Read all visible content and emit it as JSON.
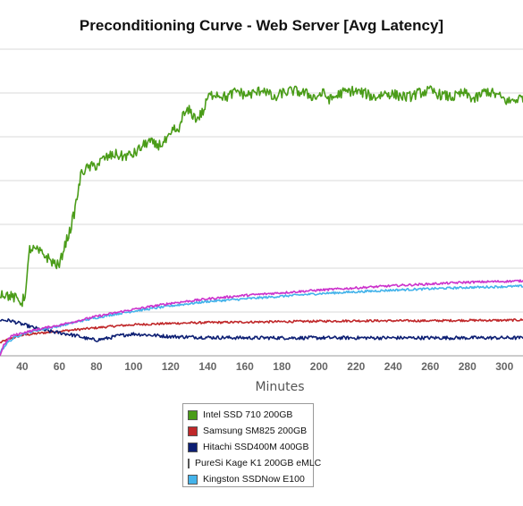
{
  "chart_data": {
    "type": "line",
    "title": "Preconditioning Curve - Web Server [Avg Latency]",
    "xlabel": "Minutes",
    "ylabel": "",
    "xlim": [
      28,
      310
    ],
    "ylim": [
      0,
      7
    ],
    "x_ticks": [
      40,
      60,
      80,
      100,
      120,
      140,
      160,
      180,
      200,
      220,
      240,
      260,
      280,
      300
    ],
    "grid": "horizontal",
    "legend_position": "bottom-center",
    "series": [
      {
        "name": "Intel SSD 710 200GB",
        "color": "#4a9c18",
        "noise": 0.12,
        "points": [
          [
            28,
            1.45
          ],
          [
            36,
            1.32
          ],
          [
            40,
            1.22
          ],
          [
            42,
            1.5
          ],
          [
            44,
            2.45
          ],
          [
            48,
            2.4
          ],
          [
            52,
            2.3
          ],
          [
            56,
            2.15
          ],
          [
            60,
            2.05
          ],
          [
            62,
            2.4
          ],
          [
            66,
            2.9
          ],
          [
            68,
            3.25
          ],
          [
            72,
            4.2
          ],
          [
            76,
            4.3
          ],
          [
            80,
            4.35
          ],
          [
            84,
            4.5
          ],
          [
            90,
            4.6
          ],
          [
            94,
            4.55
          ],
          [
            100,
            4.6
          ],
          [
            104,
            4.75
          ],
          [
            108,
            4.9
          ],
          [
            112,
            4.8
          ],
          [
            116,
            4.85
          ],
          [
            120,
            5.0
          ],
          [
            122,
            5.2
          ],
          [
            124,
            5.05
          ],
          [
            126,
            5.45
          ],
          [
            130,
            5.6
          ],
          [
            134,
            5.4
          ],
          [
            138,
            5.6
          ],
          [
            140,
            5.9
          ],
          [
            144,
            6.0
          ],
          [
            150,
            5.9
          ],
          [
            156,
            6.05
          ],
          [
            160,
            5.95
          ],
          [
            166,
            6.0
          ],
          [
            170,
            6.1
          ],
          [
            176,
            5.85
          ],
          [
            180,
            6.0
          ],
          [
            186,
            6.05
          ],
          [
            192,
            6.0
          ],
          [
            198,
            5.9
          ],
          [
            202,
            6.0
          ],
          [
            206,
            5.85
          ],
          [
            212,
            6.0
          ],
          [
            218,
            6.05
          ],
          [
            224,
            6.0
          ],
          [
            230,
            5.9
          ],
          [
            236,
            6.0
          ],
          [
            242,
            5.95
          ],
          [
            248,
            5.9
          ],
          [
            254,
            6.0
          ],
          [
            260,
            6.05
          ],
          [
            266,
            5.95
          ],
          [
            272,
            5.9
          ],
          [
            278,
            6.0
          ],
          [
            284,
            5.85
          ],
          [
            290,
            6.05
          ],
          [
            296,
            5.95
          ],
          [
            302,
            5.8
          ],
          [
            310,
            5.9
          ]
        ]
      },
      {
        "name": "Samsung SM825 200GB",
        "color": "#c0282a",
        "noise": 0.025,
        "points": [
          [
            28,
            0.3
          ],
          [
            34,
            0.4
          ],
          [
            40,
            0.47
          ],
          [
            50,
            0.52
          ],
          [
            60,
            0.56
          ],
          [
            70,
            0.6
          ],
          [
            80,
            0.64
          ],
          [
            90,
            0.68
          ],
          [
            100,
            0.71
          ],
          [
            120,
            0.74
          ],
          [
            140,
            0.76
          ],
          [
            160,
            0.77
          ],
          [
            180,
            0.78
          ],
          [
            200,
            0.79
          ],
          [
            220,
            0.8
          ],
          [
            240,
            0.8
          ],
          [
            260,
            0.8
          ],
          [
            280,
            0.81
          ],
          [
            300,
            0.81
          ],
          [
            310,
            0.82
          ]
        ]
      },
      {
        "name": "Hitachi SSD400M 400GB",
        "color": "#0d1f73",
        "noise": 0.04,
        "points": [
          [
            28,
            0.82
          ],
          [
            34,
            0.8
          ],
          [
            40,
            0.72
          ],
          [
            48,
            0.62
          ],
          [
            56,
            0.55
          ],
          [
            64,
            0.5
          ],
          [
            70,
            0.45
          ],
          [
            76,
            0.38
          ],
          [
            80,
            0.36
          ],
          [
            86,
            0.4
          ],
          [
            92,
            0.46
          ],
          [
            100,
            0.5
          ],
          [
            110,
            0.47
          ],
          [
            120,
            0.44
          ],
          [
            130,
            0.43
          ],
          [
            140,
            0.42
          ],
          [
            160,
            0.41
          ],
          [
            180,
            0.41
          ],
          [
            200,
            0.41
          ],
          [
            220,
            0.41
          ],
          [
            240,
            0.41
          ],
          [
            260,
            0.41
          ],
          [
            280,
            0.41
          ],
          [
            300,
            0.41
          ],
          [
            310,
            0.41
          ]
        ]
      },
      {
        "name": "PureSi Kage K1 200GB eMLC",
        "color": "#cc33cc",
        "noise": 0.025,
        "points": [
          [
            28,
            0.0
          ],
          [
            30,
            0.25
          ],
          [
            34,
            0.45
          ],
          [
            40,
            0.52
          ],
          [
            50,
            0.62
          ],
          [
            60,
            0.7
          ],
          [
            70,
            0.8
          ],
          [
            80,
            0.9
          ],
          [
            90,
            0.98
          ],
          [
            100,
            1.06
          ],
          [
            110,
            1.13
          ],
          [
            120,
            1.2
          ],
          [
            140,
            1.3
          ],
          [
            160,
            1.38
          ],
          [
            180,
            1.44
          ],
          [
            200,
            1.5
          ],
          [
            220,
            1.55
          ],
          [
            240,
            1.6
          ],
          [
            260,
            1.64
          ],
          [
            280,
            1.68
          ],
          [
            300,
            1.7
          ],
          [
            310,
            1.71
          ]
        ]
      },
      {
        "name": "Kingston SSDNow E100",
        "color": "#44b3ea",
        "noise": 0.025,
        "points": [
          [
            28,
            0.08
          ],
          [
            32,
            0.3
          ],
          [
            36,
            0.42
          ],
          [
            40,
            0.5
          ],
          [
            50,
            0.6
          ],
          [
            60,
            0.68
          ],
          [
            70,
            0.78
          ],
          [
            80,
            0.87
          ],
          [
            90,
            0.95
          ],
          [
            100,
            1.02
          ],
          [
            110,
            1.08
          ],
          [
            120,
            1.14
          ],
          [
            140,
            1.24
          ],
          [
            160,
            1.3
          ],
          [
            180,
            1.36
          ],
          [
            200,
            1.42
          ],
          [
            220,
            1.46
          ],
          [
            240,
            1.5
          ],
          [
            260,
            1.53
          ],
          [
            280,
            1.56
          ],
          [
            300,
            1.58
          ],
          [
            310,
            1.59
          ]
        ]
      }
    ]
  }
}
